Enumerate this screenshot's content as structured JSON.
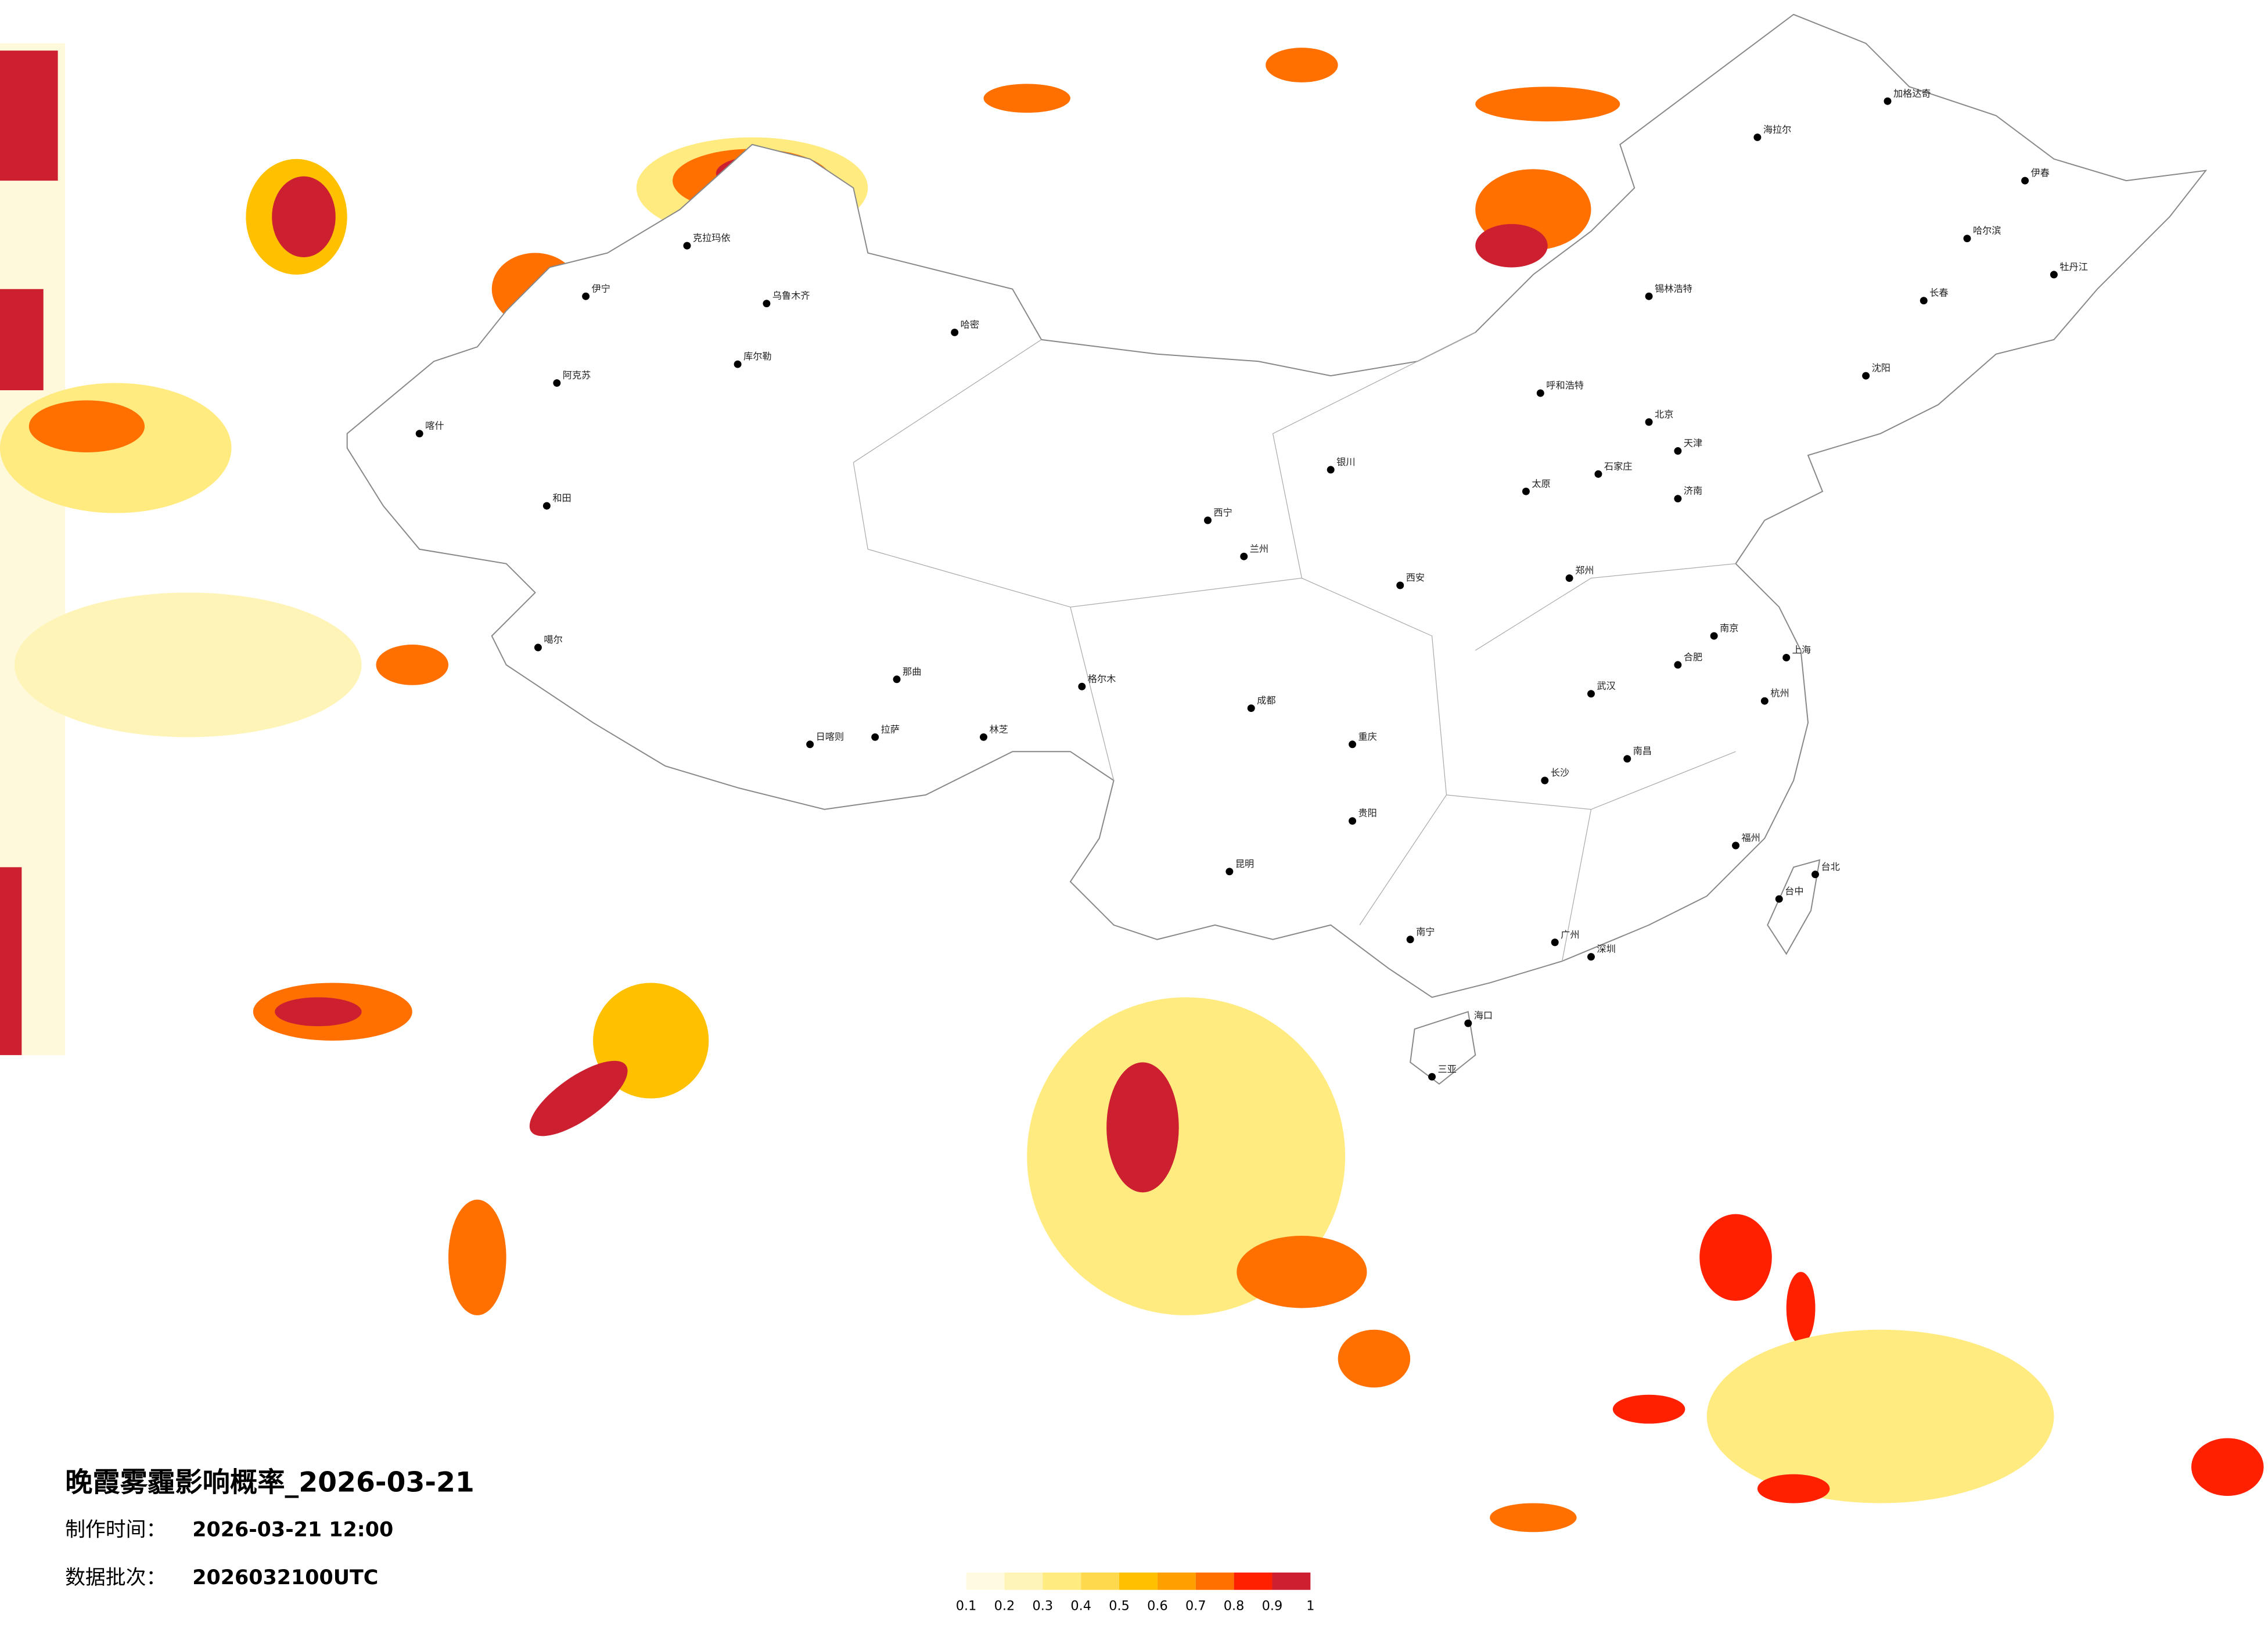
{
  "title": "晚霞雾霾影响概率_2026-03-21",
  "production_time": {
    "label": "制作时间：",
    "value": "2026-03-21 12:00"
  },
  "batch": {
    "label": "数据批次：",
    "value": "2026032100UTC"
  },
  "legend": {
    "colors": [
      "#fffbe0",
      "#fff4b8",
      "#ffeb80",
      "#ffd94d",
      "#ffc000",
      "#ffa000",
      "#ff7000",
      "#ff2000",
      "#cc2030"
    ],
    "ticks": [
      0.1,
      0.2,
      0.3,
      0.4,
      0.5,
      0.6,
      0.7,
      0.8,
      0.9,
      1
    ]
  },
  "cities": [
    "北京",
    "天津",
    "上海",
    "广州",
    "深圳",
    "重庆",
    "成都",
    "武汉",
    "西安",
    "兰州",
    "乌鲁木齐",
    "拉萨",
    "日喀则",
    "哈密",
    "喀什",
    "和田",
    "哈尔滨",
    "长春",
    "沈阳",
    "呼和浩特",
    "银川",
    "西宁",
    "昆明",
    "贵阳",
    "南宁",
    "海口",
    "三亚",
    "长沙",
    "南昌",
    "福州",
    "杭州",
    "南京",
    "合肥",
    "济南",
    "郑州",
    "太原",
    "石家庄",
    "台北",
    "台中",
    "伊春",
    "牡丹江",
    "海拉尔",
    "加格达奇",
    "锡林浩特",
    "格尔木",
    "那曲",
    "林芝",
    "伊宁",
    "阿克苏",
    "克拉玛依",
    "库尔勒",
    "噶尔"
  ]
}
